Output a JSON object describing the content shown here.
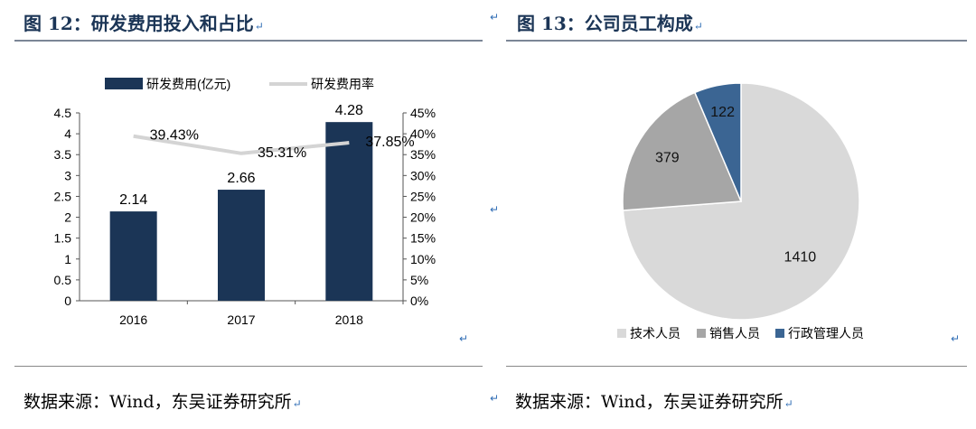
{
  "left_panel": {
    "title": "图 12：研发费用投入和占比",
    "source": "数据来源：Wind，东吴证券研究所"
  },
  "right_panel": {
    "title": "图 13：公司员工构成",
    "source": "数据来源：Wind，东吴证券研究所"
  },
  "return_mark": "↵",
  "colors": {
    "bar": "#1b3556",
    "line": "#d4d4d4",
    "title": "#1b3556",
    "pie_tech": "#d9d9d9",
    "pie_sales": "#a6a6a6",
    "pie_admin": "#3b6593"
  },
  "chart_data": [
    {
      "type": "bar",
      "categories": [
        "2016",
        "2017",
        "2018"
      ],
      "series": [
        {
          "name": "研发费用(亿元)",
          "kind": "bar",
          "axis": "left",
          "values": [
            2.14,
            2.66,
            4.28
          ],
          "labels": [
            "2.14",
            "2.66",
            "4.28"
          ]
        },
        {
          "name": "研发费用率",
          "kind": "line",
          "axis": "right",
          "values": [
            39.43,
            35.31,
            37.85
          ],
          "labels": [
            "39.43%",
            "35.31%",
            "37.85%"
          ]
        }
      ],
      "ylim": [
        0,
        4.5
      ],
      "yticks": [
        "0",
        "0.5",
        "1",
        "1.5",
        "2",
        "2.5",
        "3",
        "3.5",
        "4",
        "4.5"
      ],
      "y2lim": [
        0,
        45
      ],
      "y2ticks": [
        "0%",
        "5%",
        "10%",
        "15%",
        "20%",
        "25%",
        "30%",
        "35%",
        "40%",
        "45%"
      ],
      "legend": "top"
    },
    {
      "type": "pie",
      "labels": [
        "技术人员",
        "销售人员",
        "行政管理人员"
      ],
      "values": [
        1410,
        379,
        122
      ],
      "value_labels": [
        "1410",
        "379",
        "122"
      ],
      "legend": "bottom"
    }
  ]
}
